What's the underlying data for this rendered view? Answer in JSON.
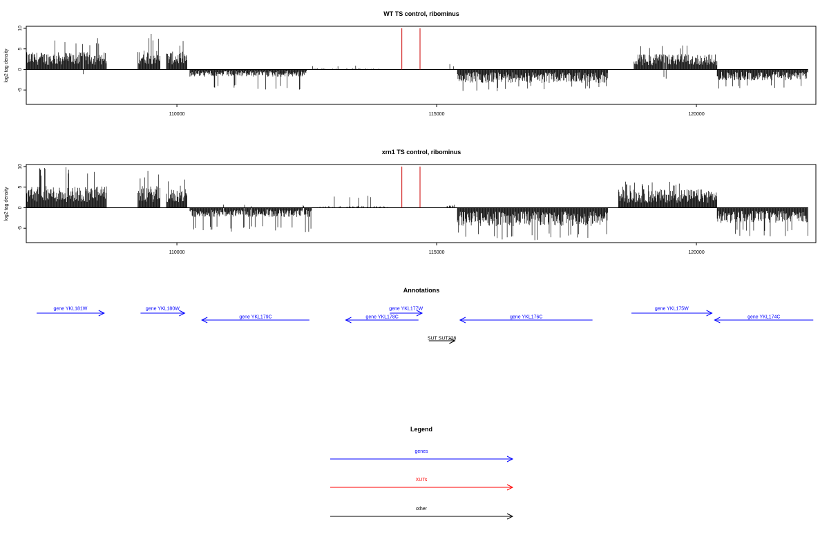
{
  "chart_data": [
    {
      "type": "bar",
      "title": "WT TS control, ribominus",
      "ylabel": "log2 tag density",
      "xlabel": "",
      "xlim": [
        107100,
        122300
      ],
      "ylim": [
        -8.5,
        10.5
      ],
      "yticks": [
        10,
        5,
        0,
        -5
      ],
      "xticks": [
        110000,
        115000,
        120000
      ],
      "xtick_labels": [
        "110000",
        "115000",
        "120000"
      ],
      "grid": false,
      "series": [
        {
          "color": "#000000",
          "segments": [
            {
              "start": 107100,
              "end": 108650,
              "mean": 2.8,
              "max": 7.8,
              "min": -1.8
            },
            {
              "start": 109250,
              "end": 109680,
              "mean": 3.2,
              "max": 9.0,
              "min": 0
            },
            {
              "start": 109800,
              "end": 110200,
              "mean": 2.9,
              "max": 7.0,
              "min": 0
            },
            {
              "start": 110250,
              "end": 112500,
              "mean": -1.2,
              "max": 0,
              "min": -5.0
            },
            {
              "start": 112600,
              "end": 113900,
              "mean": 0.2,
              "max": 1.0,
              "min": -0.6
            },
            {
              "start": 115200,
              "end": 115350,
              "mean": 0.6,
              "max": 1.5,
              "min": 0
            },
            {
              "start": 115400,
              "end": 118300,
              "mean": -2.2,
              "max": 0,
              "min": -5.3
            },
            {
              "start": 118800,
              "end": 120400,
              "mean": 2.5,
              "max": 6.0,
              "min": -2.5
            },
            {
              "start": 120400,
              "end": 122150,
              "mean": -1.8,
              "max": 0,
              "min": -5.0
            }
          ]
        },
        {
          "color": "#cc0000",
          "spikes": [
            {
              "x": 114330,
              "y": 10.0
            },
            {
              "x": 114680,
              "y": 10.0
            }
          ]
        }
      ]
    },
    {
      "type": "bar",
      "title": "xrn1 TS control, ribominus",
      "ylabel": "log2 tag density",
      "xlabel": "",
      "xlim": [
        107100,
        122300
      ],
      "ylim": [
        -8.5,
        10.5
      ],
      "yticks": [
        10,
        5,
        0,
        -5
      ],
      "xticks": [
        110000,
        115000,
        120000
      ],
      "xtick_labels": [
        "110000",
        "115000",
        "120000"
      ],
      "grid": false,
      "series": [
        {
          "color": "#000000",
          "segments": [
            {
              "start": 107100,
              "end": 108650,
              "mean": 3.5,
              "max": 10.0,
              "min": -2.5
            },
            {
              "start": 109250,
              "end": 109680,
              "mean": 3.5,
              "max": 9.0,
              "min": 0
            },
            {
              "start": 109800,
              "end": 110200,
              "mean": 3.0,
              "max": 7.0,
              "min": 0
            },
            {
              "start": 110250,
              "end": 112600,
              "mean": -1.5,
              "max": 0.8,
              "min": -6.0
            },
            {
              "start": 112700,
              "end": 114200,
              "mean": 0.3,
              "max": 3.0,
              "min": -2.0
            },
            {
              "start": 115200,
              "end": 115350,
              "mean": 0.5,
              "max": 2.0,
              "min": 0
            },
            {
              "start": 115400,
              "end": 118300,
              "mean": -3.0,
              "max": 0,
              "min": -8.0
            },
            {
              "start": 118500,
              "end": 120400,
              "mean": 3.0,
              "max": 6.5,
              "min": 0
            },
            {
              "start": 120400,
              "end": 122150,
              "mean": -2.5,
              "max": 0,
              "min": -7.0
            }
          ]
        },
        {
          "color": "#cc0000",
          "spikes": [
            {
              "x": 114330,
              "y": 10.0
            },
            {
              "x": 114680,
              "y": 10.0
            }
          ]
        }
      ]
    }
  ],
  "annotations": {
    "title": "Annotations",
    "xlim": [
      107100,
      122300
    ],
    "features": [
      {
        "label": "gene YKL181W",
        "start": 107300,
        "end": 108600,
        "strand": "+",
        "row": 0,
        "color": "#0000ff"
      },
      {
        "label": "gene YKL180W",
        "start": 109300,
        "end": 110150,
        "strand": "+",
        "row": 0,
        "color": "#0000ff"
      },
      {
        "label": "gene YKL179C",
        "start": 110480,
        "end": 112550,
        "strand": "-",
        "row": 1,
        "color": "#0000ff"
      },
      {
        "label": "gene YKL178C",
        "start": 113250,
        "end": 114650,
        "strand": "-",
        "row": 1,
        "color": "#0000ff"
      },
      {
        "label": "gene YKL177W",
        "start": 114100,
        "end": 114720,
        "strand": "+",
        "row": 0,
        "color": "#0000ff"
      },
      {
        "label": "gene YKL176C",
        "start": 115450,
        "end": 118000,
        "strand": "-",
        "row": 1,
        "color": "#0000ff"
      },
      {
        "label": "gene YKL175W",
        "start": 118750,
        "end": 120300,
        "strand": "+",
        "row": 0,
        "color": "#0000ff"
      },
      {
        "label": "gene YKL174C",
        "start": 120350,
        "end": 122250,
        "strand": "-",
        "row": 1,
        "color": "#0000ff"
      },
      {
        "label": "SUT SUT228",
        "start": 114850,
        "end": 115350,
        "strand": "+",
        "row": 3,
        "color": "#000000"
      }
    ]
  },
  "legend": {
    "title": "Legend",
    "items": [
      {
        "label": "genes",
        "color": "#0000ff"
      },
      {
        "label": "XUTs",
        "color": "#ff0000"
      },
      {
        "label": "other",
        "color": "#000000"
      }
    ]
  }
}
